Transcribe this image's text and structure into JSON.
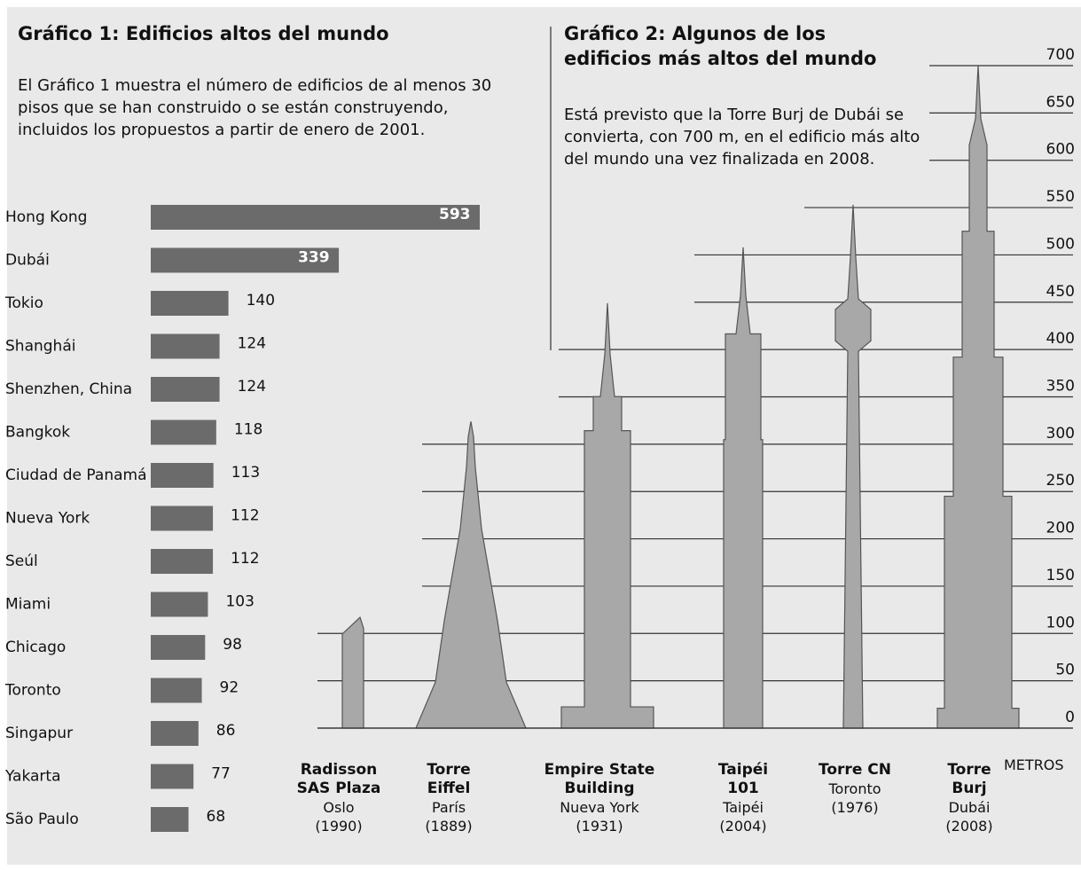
{
  "chart_data": [
    {
      "type": "hbar",
      "title": "Gráfico 1: Edificios altos del mundo",
      "subtitle": "El Gráfico 1 muestra el número de edificios de al menos 30 pisos que se han construido o se están construyendo, incluidos los propuestos a partir de enero de 2001.",
      "categories": [
        "Hong Kong",
        "Dubái",
        "Tokio",
        "Shanghái",
        "Shenzhen, China",
        "Bangkok",
        "Ciudad de Panamá",
        "Nueva York",
        "Seúl",
        "Miami",
        "Chicago",
        "Toronto",
        "Singapur",
        "Yakarta",
        "São Paulo"
      ],
      "values": [
        593,
        339,
        140,
        124,
        124,
        118,
        113,
        112,
        112,
        103,
        98,
        92,
        86,
        77,
        68
      ],
      "color": "#6b6b6b"
    },
    {
      "type": "buildings",
      "title": "Gráfico 2: Algunos de los edificios más altos del mundo",
      "subtitle": "Está previsto que la Torre Burj de Dubái se convierta, con 700 m, en el edificio más alto del mundo una vez finalizada en 2008.",
      "y_label": "METROS",
      "categories": [
        "Radisson SAS Plaza",
        "Torre Eiffel",
        "Empire State Building",
        "Taipéi 101",
        "Torre CN",
        "Torre Burj"
      ],
      "cities": [
        "Oslo",
        "París",
        "Nueva York",
        "Taipéi",
        "Toronto",
        "Dubái"
      ],
      "years": [
        "(1990)",
        "(1889)",
        "(1931)",
        "(2004)",
        "(1976)",
        "(2008)"
      ],
      "values": [
        117,
        324,
        449,
        508,
        553,
        700
      ],
      "color": "#a8a8a8",
      "ylim": [
        0,
        700
      ],
      "yticks": [
        0,
        50,
        100,
        150,
        200,
        250,
        300,
        350,
        400,
        450,
        500,
        550,
        600,
        650,
        700
      ],
      "grid": true
    }
  ]
}
